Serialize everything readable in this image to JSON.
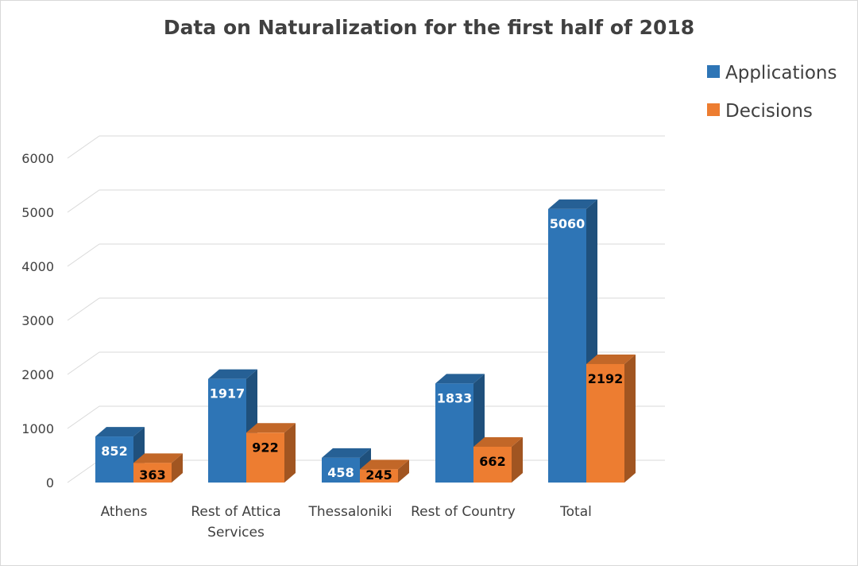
{
  "chart_data": {
    "type": "bar",
    "title": "Data on Naturalization for the first half of 2018",
    "categories": [
      "Athens",
      "Rest of Attica Services",
      "Thessaloniki",
      "Rest of Country",
      "Total"
    ],
    "category_lines": [
      [
        "Athens"
      ],
      [
        "Rest of Attica",
        "Services"
      ],
      [
        "Thessaloniki"
      ],
      [
        "Rest of Country"
      ],
      [
        "Total"
      ]
    ],
    "series": [
      {
        "name": "Applications",
        "values": [
          852,
          1917,
          458,
          1833,
          5060
        ],
        "color": "#2e75b6",
        "label_color": "#ffffff"
      },
      {
        "name": "Decisions",
        "values": [
          363,
          922,
          245,
          662,
          2192
        ],
        "color": "#ed7d31",
        "label_color": "#000000"
      }
    ],
    "yticks": [
      0,
      1000,
      2000,
      3000,
      4000,
      5000,
      6000
    ],
    "ylim": [
      0,
      6000
    ],
    "grid": true,
    "legend": "top-right",
    "style": "3d-clustered-column"
  }
}
